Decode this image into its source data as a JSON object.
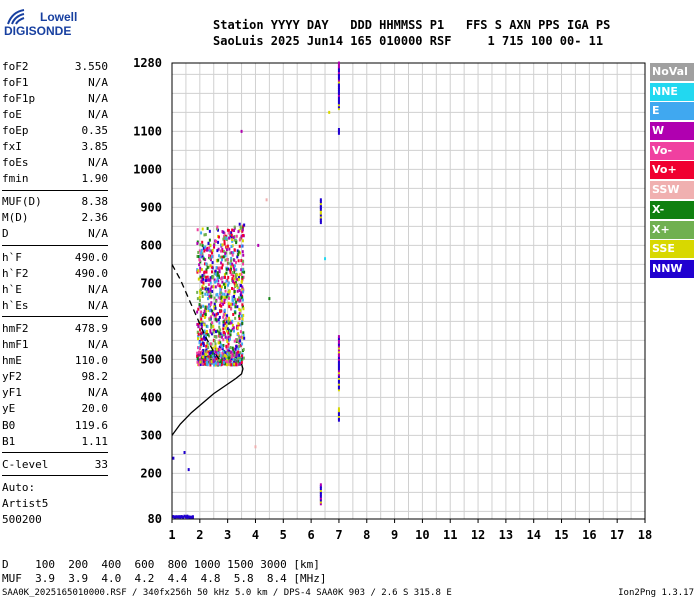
{
  "logo": {
    "top": "Lowell",
    "bottom": "DIGISONDE"
  },
  "header": {
    "line1": "Station YYYY DAY   DDD HHMMSS P1   FFS S AXN PPS IGA PS",
    "line2": "SaoLuis 2025 Jun14 165 010000 RSF     1 715 100 00- 11"
  },
  "params": [
    {
      "name": "foF2",
      "value": "3.550"
    },
    {
      "name": "foF1",
      "value": "N/A"
    },
    {
      "name": "foF1p",
      "value": "N/A"
    },
    {
      "name": "foE",
      "value": "N/A"
    },
    {
      "name": "foEp",
      "value": "0.35"
    },
    {
      "name": "fxI",
      "value": "3.85"
    },
    {
      "name": "foEs",
      "value": "N/A"
    },
    {
      "name": "fmin",
      "value": "1.90"
    },
    {
      "sep": true
    },
    {
      "name": "MUF(D)",
      "value": "8.38"
    },
    {
      "name": "M(D)",
      "value": "2.36"
    },
    {
      "name": "D",
      "value": "N/A"
    },
    {
      "sep": true
    },
    {
      "name": "h`F",
      "value": "490.0"
    },
    {
      "name": "h`F2",
      "value": "490.0"
    },
    {
      "name": "h`E",
      "value": "N/A"
    },
    {
      "name": "h`Es",
      "value": "N/A"
    },
    {
      "sep": true
    },
    {
      "name": "hmF2",
      "value": "478.9"
    },
    {
      "name": "hmF1",
      "value": "N/A"
    },
    {
      "name": "hmE",
      "value": "110.0"
    },
    {
      "name": "yF2",
      "value": "98.2"
    },
    {
      "name": "yF1",
      "value": "N/A"
    },
    {
      "name": "yE",
      "value": "20.0"
    },
    {
      "name": "B0",
      "value": "119.6"
    },
    {
      "name": "B1",
      "value": "1.11"
    },
    {
      "sep": true
    },
    {
      "name": "C-level",
      "value": "33"
    },
    {
      "sep": true
    }
  ],
  "auto": {
    "line1": "Auto:",
    "line2": "Artist5",
    "line3": "500200"
  },
  "legend": [
    {
      "label": "NoVal",
      "color": "#a0a0a0"
    },
    {
      "label": "NNE",
      "color": "#22d8f0"
    },
    {
      "label": "E",
      "color": "#40a8f0"
    },
    {
      "label": "W",
      "color": "#b000b0"
    },
    {
      "label": "Vo-",
      "color": "#f040a0"
    },
    {
      "label": "Vo+",
      "color": "#f00030"
    },
    {
      "label": "SSW",
      "color": "#f0b0b0"
    },
    {
      "label": "X-",
      "color": "#108010"
    },
    {
      "label": "X+",
      "color": "#70b050"
    },
    {
      "label": "SSE",
      "color": "#d8d800"
    },
    {
      "label": "NNW",
      "color": "#2000d0"
    }
  ],
  "bottom": {
    "d_line": "D    100  200  400  600  800 1000 1500 3000 [km]",
    "muf_line": "MUF  3.9  3.9  4.0  4.2  4.4  4.8  5.8  8.4 [MHz]"
  },
  "footer": "SAA0K_2025165010000.RSF / 340fx256h 50 kHz 5.0 km / DPS-4 SAA0K 903 / 2.6 S 315.8 E",
  "version": "Ion2Png 1.3.17",
  "chart_data": {
    "type": "scatter",
    "x_ticks": [
      "1",
      "2",
      "3",
      "4",
      "5",
      "6",
      "7",
      "8",
      "9",
      "10",
      "11",
      "12",
      "13",
      "14",
      "15",
      "16",
      "17",
      "18"
    ],
    "y_ticks": [
      "80",
      "200",
      "300",
      "400",
      "500",
      "600",
      "700",
      "800",
      "900",
      "1000",
      "1100",
      "1280"
    ],
    "xlim": [
      1,
      18
    ],
    "ylim": [
      80,
      1280
    ],
    "grid": true,
    "profile_solid": [
      [
        1.0,
        300
      ],
      [
        1.3,
        330
      ],
      [
        1.7,
        360
      ],
      [
        2.1,
        385
      ],
      [
        2.5,
        410
      ],
      [
        2.9,
        430
      ],
      [
        3.3,
        450
      ],
      [
        3.5,
        462
      ],
      [
        3.55,
        475
      ],
      [
        3.5,
        488
      ]
    ],
    "profile_dashed": [
      [
        1.0,
        750
      ],
      [
        1.3,
        710
      ],
      [
        1.6,
        660
      ],
      [
        1.9,
        610
      ],
      [
        2.2,
        560
      ],
      [
        2.5,
        520
      ],
      [
        2.75,
        495
      ]
    ],
    "trace_f_region": {
      "f_min": 1.9,
      "f_max": 3.6,
      "h_min": 485,
      "h_max": 860
    },
    "echo_columns": [
      {
        "f": 6.35,
        "h": [
          860,
          920
        ]
      },
      {
        "f": 6.35,
        "h": [
          120,
          170
        ]
      },
      {
        "f": 7.0,
        "h": [
          1160,
          1280
        ]
      },
      {
        "f": 7.0,
        "h": [
          420,
          560
        ]
      },
      {
        "f": 7.0,
        "h": [
          340,
          370
        ]
      },
      {
        "f": 7.0,
        "h": [
          1095,
          1105
        ]
      }
    ],
    "low_echoes": [
      {
        "f": 1.1,
        "h": 85
      },
      {
        "f": 1.3,
        "h": 86
      },
      {
        "f": 1.55,
        "h": 84
      },
      {
        "f": 1.75,
        "h": 86
      },
      {
        "f": 1.6,
        "h": 210
      },
      {
        "f": 1.45,
        "h": 255
      },
      {
        "f": 1.05,
        "h": 240
      }
    ],
    "isolated_echoes": [
      {
        "f": 3.5,
        "h": 1100
      },
      {
        "f": 4.4,
        "h": 920
      },
      {
        "f": 4.5,
        "h": 660
      },
      {
        "f": 6.5,
        "h": 765
      },
      {
        "f": 6.65,
        "h": 1150
      },
      {
        "f": 4.0,
        "h": 270
      },
      {
        "f": 4.1,
        "h": 800
      }
    ]
  }
}
